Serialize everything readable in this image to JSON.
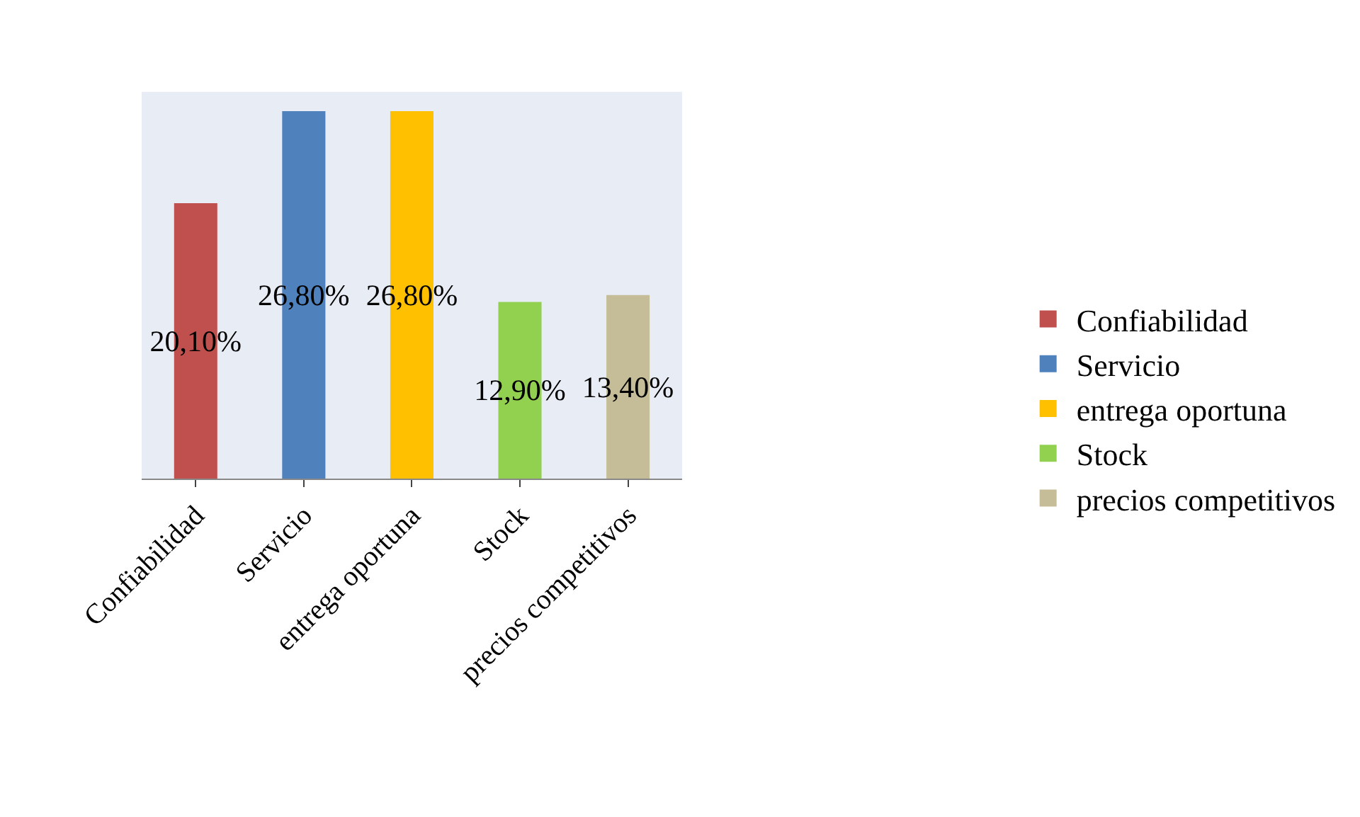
{
  "chart_data": {
    "type": "bar",
    "categories": [
      "Confiabilidad",
      "Servicio",
      "entrega oportuna",
      "Stock",
      "precios competitivos"
    ],
    "series": [
      {
        "name": "Confiabilidad",
        "color": "#c0504d",
        "values": [
          20.1,
          null,
          null,
          null,
          null
        ],
        "value_labels": [
          "20,10%",
          null,
          null,
          null,
          null
        ]
      },
      {
        "name": "Servicio",
        "color": "#4f81bd",
        "values": [
          null,
          26.8,
          null,
          null,
          null
        ],
        "value_labels": [
          null,
          "26,80%",
          null,
          null,
          null
        ]
      },
      {
        "name": "entrega oportuna",
        "color": "#ffc000",
        "values": [
          null,
          null,
          26.8,
          null,
          null
        ],
        "value_labels": [
          null,
          null,
          "26,80%",
          null,
          null
        ]
      },
      {
        "name": "Stock",
        "color": "#92d050",
        "values": [
          null,
          null,
          null,
          12.9,
          null
        ],
        "value_labels": [
          null,
          null,
          null,
          "12,90%",
          null
        ]
      },
      {
        "name": "precios competitivos",
        "color": "#c4bd97",
        "values": [
          null,
          null,
          null,
          null,
          13.4
        ],
        "value_labels": [
          null,
          null,
          null,
          null,
          "13,40%"
        ]
      }
    ],
    "legend": "right"
  }
}
